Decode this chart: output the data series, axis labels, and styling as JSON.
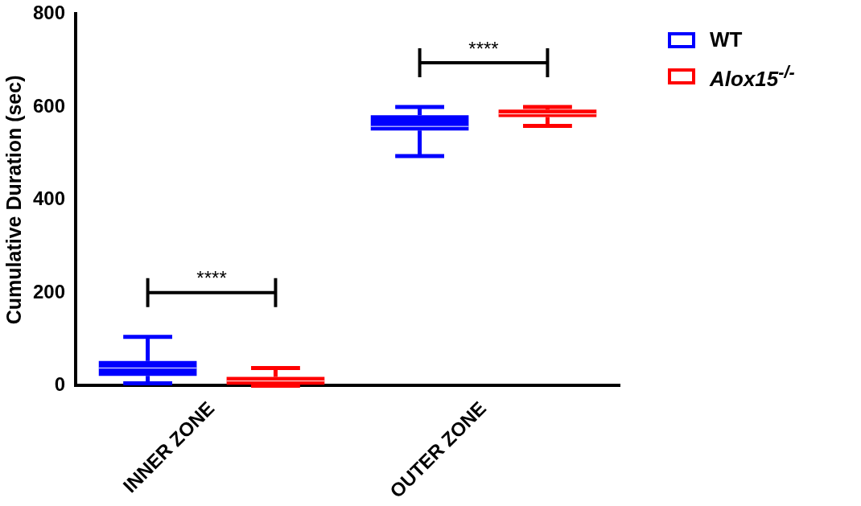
{
  "chart_data": {
    "type": "box",
    "ylabel": "Cumulative Duration (sec)",
    "categories": [
      "INNER ZONE",
      "OUTER ZONE"
    ],
    "series": [
      {
        "name": "WT",
        "color": "#0000ff",
        "boxes": [
          {
            "low": 5,
            "q1": 21,
            "median": 38,
            "q3": 53,
            "high": 105
          },
          {
            "low": 494,
            "q1": 549,
            "median": 558,
            "q3": 582,
            "high": 600
          }
        ]
      },
      {
        "name": "Alox15$^{-/-}$",
        "color": "#ff0000",
        "boxes": [
          {
            "low": 0,
            "q1": 2,
            "median": 10,
            "q3": 19,
            "high": 38
          },
          {
            "low": 559,
            "q1": 578,
            "median": 585,
            "q3": 594,
            "high": 600
          }
        ]
      }
    ],
    "ylim": [
      0,
      800
    ],
    "yticks": [
      0,
      200,
      400,
      600,
      800
    ],
    "legend": "top right",
    "annotations": [
      "****",
      "****"
    ]
  }
}
